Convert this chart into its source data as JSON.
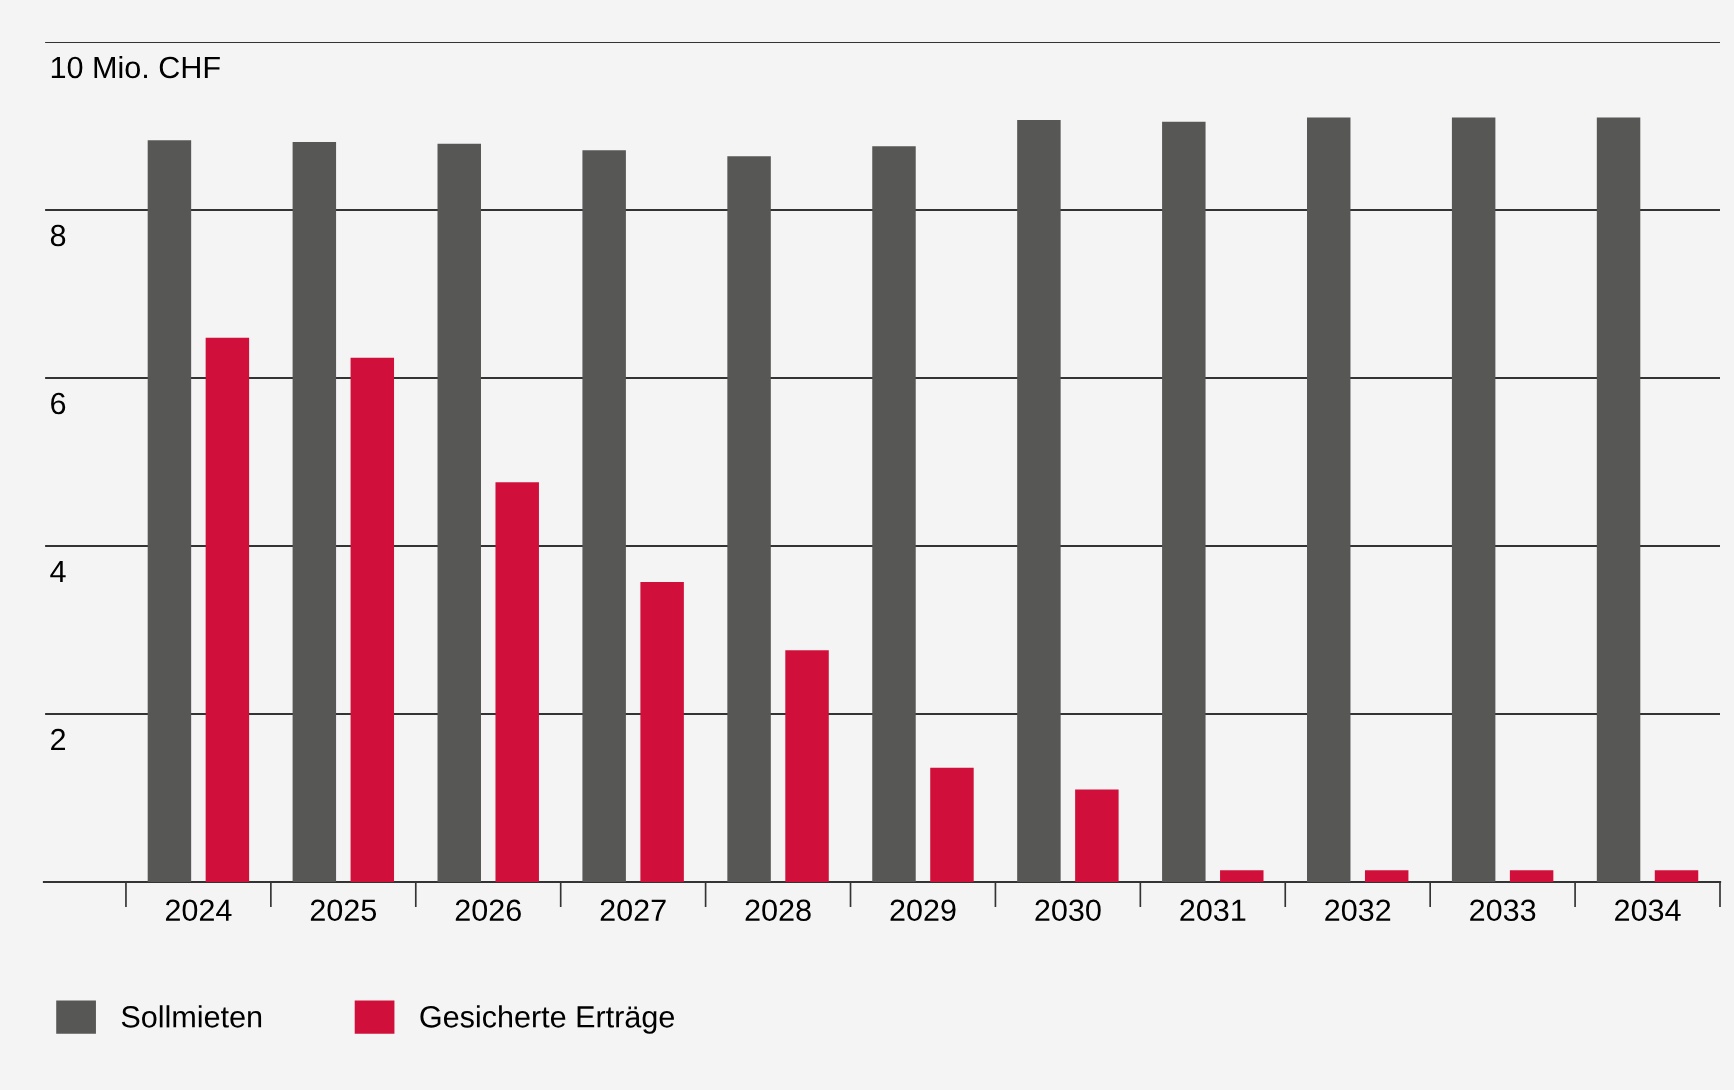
{
  "chart_data": {
    "type": "bar",
    "categories": [
      "2024",
      "2025",
      "2026",
      "2027",
      "2028",
      "2029",
      "2030",
      "2031",
      "2032",
      "2033",
      "2034"
    ],
    "series": [
      {
        "name": "Sollmieten",
        "color": "#575756",
        "values": [
          8.83,
          8.81,
          8.79,
          8.71,
          8.64,
          8.76,
          9.07,
          9.05,
          9.1,
          9.1,
          9.1
        ]
      },
      {
        "name": "Gesicherte Erträge",
        "color": "#d0103a",
        "values": [
          6.48,
          6.24,
          4.76,
          3.57,
          2.76,
          1.36,
          1.1,
          0.14,
          0.14,
          0.14,
          0.14
        ]
      }
    ],
    "ylim": [
      0,
      10
    ],
    "yticks": [
      {
        "value": 0,
        "label": null
      },
      2,
      4,
      6,
      8,
      {
        "value": 10,
        "label": "10 Mio. CHF"
      }
    ],
    "grid": "y",
    "legend": "bottom left"
  }
}
